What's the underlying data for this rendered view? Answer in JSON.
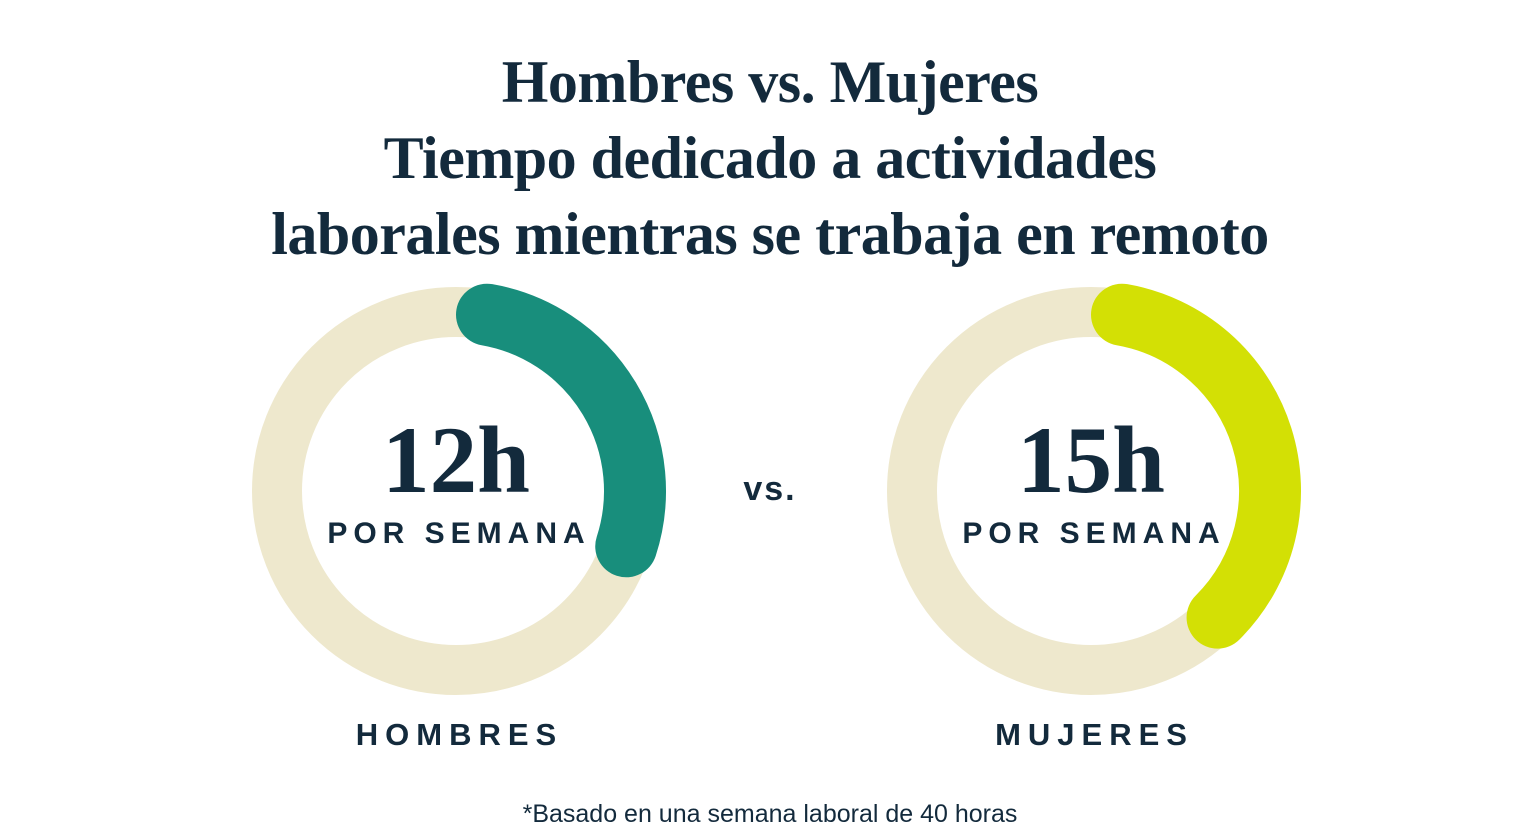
{
  "title": {
    "line1": "Hombres vs. Mujeres",
    "line2": "Tiempo dedicado a actividades",
    "line3": "laborales mientras se trabaja en remoto"
  },
  "separator": "vs.",
  "footnote": "*Basado en una semana laboral de 40 horas",
  "colors": {
    "text_navy": "#132A3C",
    "track_cream": "#EEE8CD",
    "arc_teal": "#188E7C",
    "arc_lime": "#D3E005",
    "background": "#FFFFFF"
  },
  "chart_data": {
    "type": "donut",
    "title": "Hombres vs. Mujeres — Tiempo dedicado a actividades laborales mientras se trabaja en remoto",
    "note": "*Basado en una semana laboral de 40 horas",
    "total_hours": 40,
    "track_color": "#EEE8CD",
    "legend_position": "below-each-donut",
    "series": [
      {
        "category": "HOMBRES",
        "hours": 12,
        "percent_of_week": 30,
        "value_label": "12h",
        "sub_label": "POR SEMANA",
        "arc_color": "#188E7C"
      },
      {
        "category": "MUJERES",
        "hours": 15,
        "percent_of_week": 37.5,
        "value_label": "15h",
        "sub_label": "POR SEMANA",
        "arc_color": "#D3E005"
      }
    ]
  }
}
